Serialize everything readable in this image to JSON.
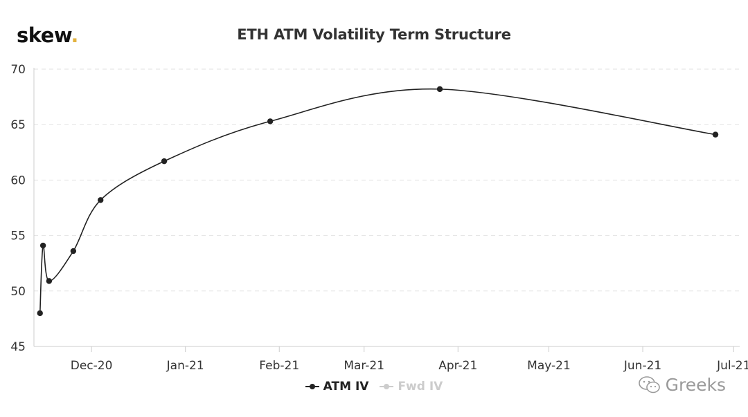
{
  "logo": {
    "text": "skew",
    "dot": "."
  },
  "watermark": {
    "text": "Greeks"
  },
  "colors": {
    "series": "#222222",
    "disabled": "#cccccc",
    "grid": "#e2e2e2",
    "axis": "#cccccc",
    "logo_dot": "#e3b341"
  },
  "chart_data": {
    "type": "line",
    "title": "ETH ATM Volatility Term Structure",
    "xlabel": "",
    "ylabel": "",
    "ylim": [
      45,
      70
    ],
    "y_ticks": [
      45,
      50,
      55,
      60,
      65,
      70
    ],
    "xlim": [
      "2020-11-12",
      "2021-07-03"
    ],
    "x_ticks": [
      {
        "date": "2020-12-01",
        "label": "Dec-20"
      },
      {
        "date": "2021-01-01",
        "label": "Jan-21"
      },
      {
        "date": "2021-02-01",
        "label": "Feb-21"
      },
      {
        "date": "2021-03-01",
        "label": "Mar-21"
      },
      {
        "date": "2021-04-01",
        "label": "Apr-21"
      },
      {
        "date": "2021-05-01",
        "label": "May-21"
      },
      {
        "date": "2021-06-01",
        "label": "Jun-21"
      },
      {
        "date": "2021-07-01",
        "label": "Jul-21"
      }
    ],
    "grid": true,
    "legend_position": "bottom",
    "series": [
      {
        "name": "ATM IV",
        "active": true,
        "points": [
          {
            "x": "2020-11-14",
            "y": 48.0
          },
          {
            "x": "2020-11-15",
            "y": 54.1
          },
          {
            "x": "2020-11-17",
            "y": 50.9
          },
          {
            "x": "2020-11-25",
            "y": 53.6
          },
          {
            "x": "2020-12-04",
            "y": 58.2
          },
          {
            "x": "2020-12-25",
            "y": 61.7
          },
          {
            "x": "2021-01-29",
            "y": 65.3
          },
          {
            "x": "2021-03-26",
            "y": 68.2
          },
          {
            "x": "2021-06-25",
            "y": 64.1
          }
        ]
      },
      {
        "name": "Fwd IV",
        "active": false,
        "points": []
      }
    ]
  }
}
